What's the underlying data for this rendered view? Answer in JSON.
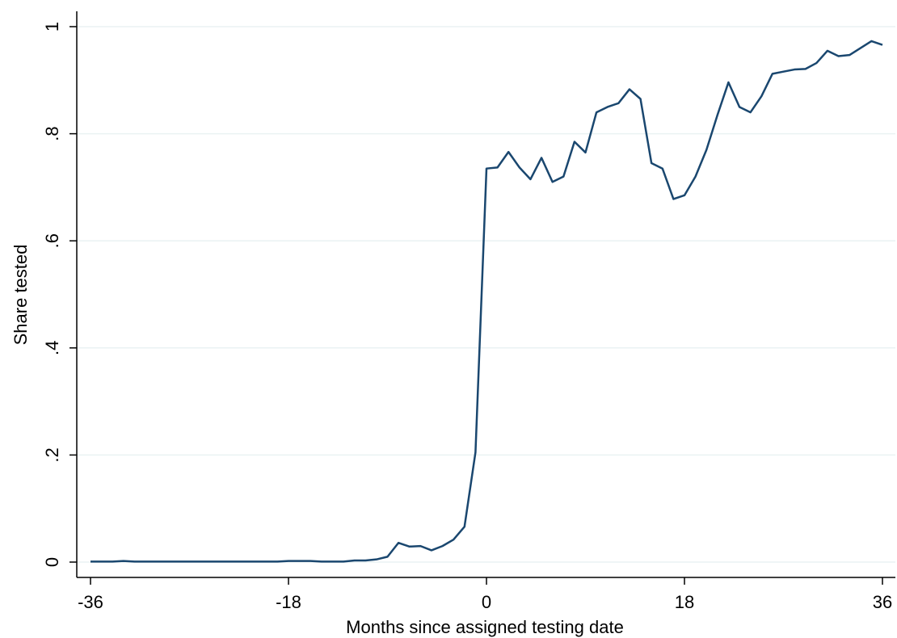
{
  "chart_data": {
    "type": "line",
    "xlabel": "Months since assigned testing date",
    "ylabel": "Share tested",
    "x": [
      -36,
      -35,
      -34,
      -33,
      -32,
      -31,
      -30,
      -29,
      -28,
      -27,
      -26,
      -25,
      -24,
      -23,
      -22,
      -21,
      -20,
      -19,
      -18,
      -17,
      -16,
      -15,
      -14,
      -13,
      -12,
      -11,
      -10,
      -9,
      -8,
      -7,
      -6,
      -5,
      -4,
      -3,
      -2,
      -1,
      0,
      1,
      2,
      3,
      4,
      5,
      6,
      7,
      8,
      9,
      10,
      11,
      12,
      13,
      14,
      15,
      16,
      17,
      18,
      19,
      20,
      21,
      22,
      23,
      24,
      25,
      26,
      27,
      28,
      29,
      30,
      31,
      32,
      33,
      34,
      35,
      36
    ],
    "values": [
      0.001,
      0.001,
      0.001,
      0.002,
      0.001,
      0.001,
      0.001,
      0.001,
      0.001,
      0.001,
      0.001,
      0.001,
      0.001,
      0.001,
      0.001,
      0.001,
      0.001,
      0.001,
      0.002,
      0.002,
      0.002,
      0.001,
      0.001,
      0.001,
      0.003,
      0.003,
      0.005,
      0.01,
      0.036,
      0.029,
      0.03,
      0.022,
      0.03,
      0.042,
      0.066,
      0.205,
      0.735,
      0.737,
      0.766,
      0.737,
      0.715,
      0.755,
      0.71,
      0.72,
      0.785,
      0.765,
      0.84,
      0.85,
      0.857,
      0.883,
      0.865,
      0.745,
      0.735,
      0.678,
      0.685,
      0.72,
      0.77,
      0.835,
      0.896,
      0.85,
      0.84,
      0.87,
      0.912,
      0.916,
      0.92,
      0.921,
      0.932,
      0.955,
      0.945,
      0.947,
      0.96,
      0.973,
      0.966
    ],
    "color": "#1a476f",
    "xlim": [
      -36,
      36
    ],
    "xticks": [
      -36,
      -18,
      0,
      18,
      36
    ],
    "ylim": [
      0,
      1
    ],
    "yticks": [
      0,
      {
        "value": 0.2,
        "label": ".2"
      },
      {
        "value": 0.4,
        "label": ".4"
      },
      {
        "value": 0.6,
        "label": ".6"
      },
      {
        "value": 0.8,
        "label": ".8"
      },
      1
    ],
    "grid": true
  }
}
